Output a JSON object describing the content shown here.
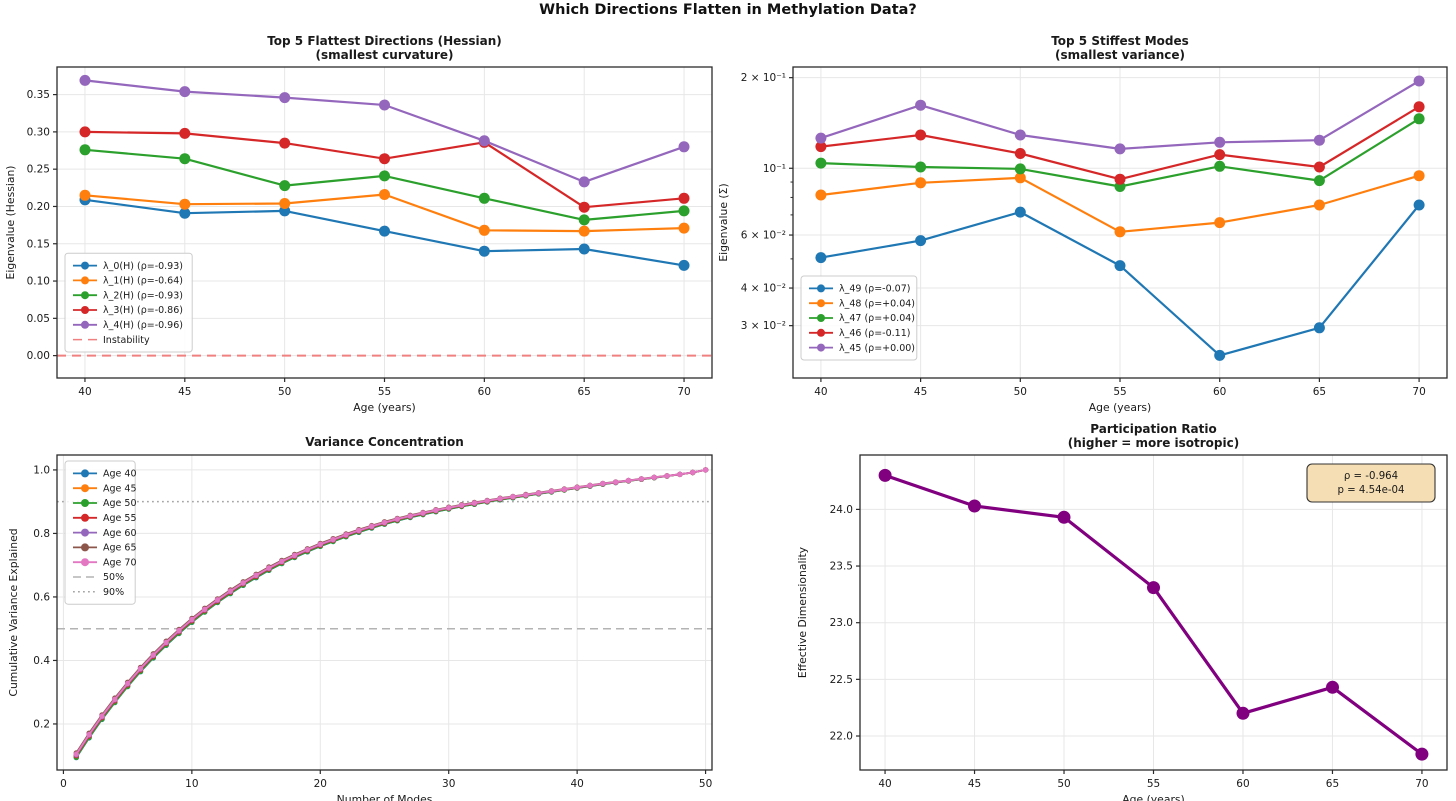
{
  "suptitle": "Which Directions Flatten in Methylation Data?",
  "colors": {
    "blue": "#1f77b4",
    "orange": "#ff7f0e",
    "green": "#2ca02c",
    "red": "#d62728",
    "purple": "#9467bd",
    "brown": "#8c564b",
    "pink": "#e377c2",
    "dark_purple": "#800080",
    "instability": "#f08080",
    "grid": "#e7e7e7",
    "spine": "#2b2b2b",
    "annotation_bg": "#f5deb3",
    "ref_gray_dashed": "#b3b3b3",
    "ref_gray_dotted": "#a6a6a6"
  },
  "chart_data": [
    {
      "id": "flattest",
      "type": "line",
      "title_lines": [
        "Top 5 Flattest Directions (Hessian)",
        "(smallest curvature)"
      ],
      "xlabel": "Age (years)",
      "ylabel": "Eigenvalue (Hessian)",
      "x": [
        40,
        45,
        50,
        55,
        60,
        65,
        70
      ],
      "xticks": [
        40,
        45,
        50,
        55,
        60,
        65,
        70
      ],
      "xlim": [
        38.6,
        71.4
      ],
      "ylim": [
        -0.03,
        0.387
      ],
      "yticks": [
        0.0,
        0.05,
        0.1,
        0.15,
        0.2,
        0.25,
        0.3,
        0.35
      ],
      "ydecimals": 2,
      "grid": true,
      "legend_position": "lower-left",
      "series": [
        {
          "name": "λ_0(H) (ρ=-0.93)",
          "color": "blue",
          "values": [
            0.209,
            0.191,
            0.194,
            0.167,
            0.14,
            0.143,
            0.121
          ]
        },
        {
          "name": "λ_1(H) (ρ=-0.64)",
          "color": "orange",
          "values": [
            0.215,
            0.203,
            0.204,
            0.216,
            0.168,
            0.167,
            0.171
          ]
        },
        {
          "name": "λ_2(H) (ρ=-0.93)",
          "color": "green",
          "values": [
            0.276,
            0.264,
            0.228,
            0.241,
            0.211,
            0.182,
            0.194
          ]
        },
        {
          "name": "λ_3(H) (ρ=-0.86)",
          "color": "red",
          "values": [
            0.3,
            0.298,
            0.285,
            0.264,
            0.286,
            0.199,
            0.211
          ]
        },
        {
          "name": "λ_4(H) (ρ=-0.96)",
          "color": "purple",
          "values": [
            0.369,
            0.354,
            0.346,
            0.336,
            0.288,
            0.233,
            0.28
          ]
        }
      ],
      "ref_lines": [
        {
          "label": "Instability",
          "y": 0.0,
          "color": "instability",
          "dash": "9 6",
          "width": 2.0
        }
      ]
    },
    {
      "id": "stiffest",
      "type": "line",
      "yscale": "log",
      "title_lines": [
        "Top 5 Stiffest Modes",
        "(smallest variance)"
      ],
      "xlabel": "Age (years)",
      "ylabel": "Eigenvalue (Σ)",
      "x": [
        40,
        45,
        50,
        55,
        60,
        65,
        70
      ],
      "xticks": [
        40,
        45,
        50,
        55,
        60,
        65,
        70
      ],
      "xlim": [
        38.6,
        71.4
      ],
      "ylim": [
        0.0201,
        0.217
      ],
      "yticks": [
        {
          "v": 0.2,
          "label": "2 × 10⁻¹"
        },
        {
          "v": 0.1,
          "label": "10⁻¹"
        },
        {
          "v": 0.06,
          "label": "6 × 10⁻²"
        },
        {
          "v": 0.04,
          "label": "4 × 10⁻²"
        },
        {
          "v": 0.03,
          "label": "3 × 10⁻²"
        }
      ],
      "minor_yticks": [
        0.05,
        0.07,
        0.08,
        0.09
      ],
      "grid": true,
      "legend_position": "lower-left",
      "series": [
        {
          "name": "λ_49 (ρ=-0.07)",
          "color": "blue",
          "values": [
            0.0505,
            0.0575,
            0.0715,
            0.0475,
            0.0239,
            0.0295,
            0.0755
          ]
        },
        {
          "name": "λ_48 (ρ=+0.04)",
          "color": "orange",
          "values": [
            0.0815,
            0.0895,
            0.093,
            0.0615,
            0.066,
            0.0755,
            0.0945
          ]
        },
        {
          "name": "λ_47 (ρ=+0.04)",
          "color": "green",
          "values": [
            0.104,
            0.101,
            0.0995,
            0.087,
            0.1015,
            0.091,
            0.146
          ]
        },
        {
          "name": "λ_46 (ρ=-0.11)",
          "color": "red",
          "values": [
            0.118,
            0.129,
            0.112,
            0.092,
            0.111,
            0.101,
            0.16
          ]
        },
        {
          "name": "λ_45 (ρ=+0.00)",
          "color": "purple",
          "values": [
            0.126,
            0.162,
            0.129,
            0.116,
            0.122,
            0.124,
            0.195
          ]
        }
      ],
      "ref_lines": []
    },
    {
      "id": "variance",
      "type": "line",
      "title_lines": [
        "Variance Concentration"
      ],
      "xlabel": "Number of Modes",
      "ylabel": "Cumulative Variance Explained",
      "xlim": [
        -0.5,
        50.5
      ],
      "ylim": [
        0.055,
        1.047
      ],
      "xticks": [
        0,
        10,
        20,
        30,
        40,
        50
      ],
      "yticks": [
        0.2,
        0.4,
        0.6,
        0.8,
        1.0
      ],
      "ydecimals": 1,
      "grid": true,
      "legend_position": "upper-left",
      "modes_range": [
        1,
        50
      ],
      "base_cumulative": [
        0.1,
        0.162,
        0.22,
        0.273,
        0.323,
        0.37,
        0.413,
        0.453,
        0.49,
        0.525,
        0.557,
        0.587,
        0.615,
        0.641,
        0.665,
        0.688,
        0.709,
        0.728,
        0.746,
        0.763,
        0.778,
        0.793,
        0.807,
        0.82,
        0.832,
        0.843,
        0.853,
        0.862,
        0.871,
        0.879,
        0.887,
        0.894,
        0.901,
        0.908,
        0.914,
        0.92,
        0.926,
        0.932,
        0.938,
        0.944,
        0.95,
        0.956,
        0.961,
        0.966,
        0.971,
        0.976,
        0.981,
        0.986,
        0.992,
        1.0
      ],
      "series": [
        {
          "name": "Age 40",
          "color": "blue",
          "offset": -0.006
        },
        {
          "name": "Age 45",
          "color": "orange",
          "offset": -0.002
        },
        {
          "name": "Age 50",
          "color": "green",
          "offset": -0.005
        },
        {
          "name": "Age 55",
          "color": "red",
          "offset": 0.0
        },
        {
          "name": "Age 60",
          "color": "purple",
          "offset": 0.003
        },
        {
          "name": "Age 65",
          "color": "brown",
          "offset": 0.009
        },
        {
          "name": "Age 70",
          "color": "pink",
          "offset": 0.005
        }
      ],
      "ref_lines": [
        {
          "label": "50%",
          "y": 0.5,
          "color": "ref_gray_dashed",
          "dash": "8 5",
          "width": 1.5
        },
        {
          "label": "90%",
          "y": 0.9,
          "color": "ref_gray_dotted",
          "dash": "1.8 3.2",
          "width": 1.5
        }
      ]
    },
    {
      "id": "participation",
      "type": "line",
      "title_lines": [
        "Participation Ratio",
        "(higher = more isotropic)"
      ],
      "xlabel": "Age (years)",
      "ylabel": "Effective Dimensionality",
      "x": [
        40,
        45,
        50,
        55,
        60,
        65,
        70
      ],
      "xticks": [
        40,
        45,
        50,
        55,
        60,
        65,
        70
      ],
      "xlim": [
        38.6,
        71.4
      ],
      "ylim": [
        21.7,
        24.48
      ],
      "yticks": [
        22.0,
        22.5,
        23.0,
        23.5,
        24.0
      ],
      "ydecimals": 1,
      "grid": true,
      "series": [
        {
          "name": "participation-ratio",
          "color": "dark_purple",
          "values": [
            24.3,
            24.03,
            23.93,
            23.31,
            22.2,
            22.43,
            21.84
          ],
          "no_legend": true
        }
      ],
      "ref_lines": [],
      "annotation": {
        "lines": [
          "ρ = -0.964",
          "p = 4.54e-04"
        ]
      }
    }
  ]
}
